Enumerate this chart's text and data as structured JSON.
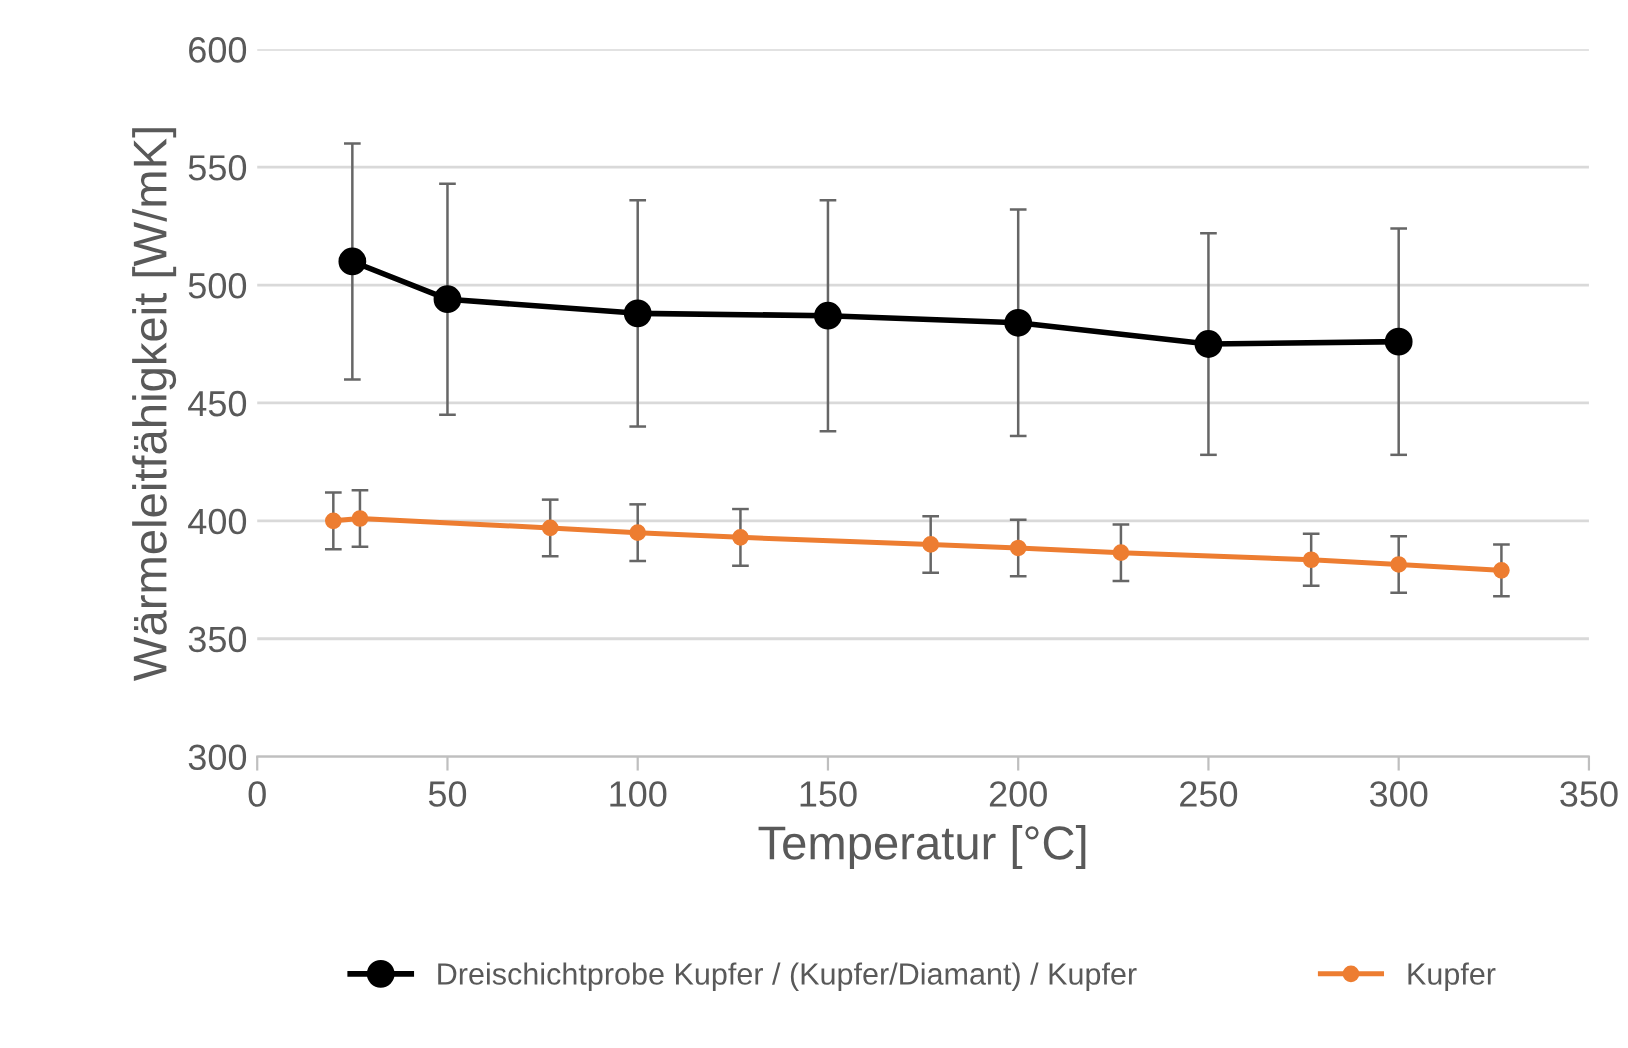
{
  "chart_data": {
    "type": "line",
    "xlabel": "Temperatur [°C]",
    "ylabel": "Wärmeleitfähigkeit [W/mK]",
    "xlim": [
      0,
      350
    ],
    "xticks": [
      0,
      50,
      100,
      150,
      200,
      250,
      300,
      350
    ],
    "ylim": [
      300,
      600
    ],
    "yticks": [
      300,
      350,
      400,
      450,
      500,
      550,
      600
    ],
    "grid": "y",
    "legend": "bottom",
    "marker": "circle",
    "series": [
      {
        "name": "Dreischichtprobe Kupfer / (Kupfer/Diamant) / Kupfer",
        "color": "#000000",
        "x": [
          25,
          50,
          100,
          150,
          200,
          250,
          300
        ],
        "values": [
          510,
          494,
          488,
          487,
          484,
          475,
          476
        ],
        "errors": [
          50,
          49,
          48,
          49,
          48,
          47,
          48
        ]
      },
      {
        "name": "Kupfer",
        "color": "#ed7d31",
        "x": [
          20,
          27,
          77,
          100,
          127,
          177,
          200,
          227,
          277,
          300,
          327
        ],
        "values": [
          400,
          401,
          397,
          395,
          393,
          390,
          388.5,
          386.5,
          383.5,
          381.5,
          379
        ],
        "errors": [
          12,
          12,
          12,
          12,
          12,
          12,
          12,
          12,
          11,
          12,
          11
        ]
      }
    ]
  }
}
